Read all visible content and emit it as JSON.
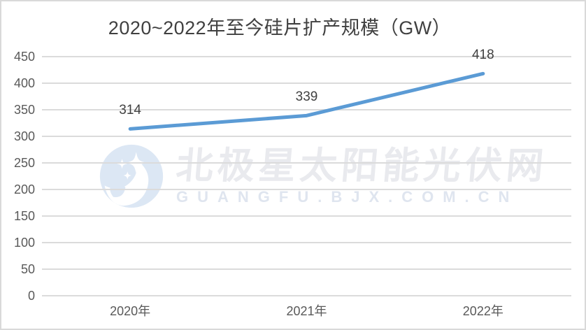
{
  "chart_data": {
    "type": "line",
    "title": "2020~2022年至今硅片扩产规模（GW）",
    "categories": [
      "2020年",
      "2021年",
      "2022年"
    ],
    "values": [
      314,
      339,
      418
    ],
    "data_labels": [
      "314",
      "339",
      "418"
    ],
    "yticks": [
      "0",
      "50",
      "100",
      "150",
      "200",
      "250",
      "300",
      "350",
      "400",
      "450"
    ],
    "ylim": [
      0,
      450
    ],
    "ytick_step": 50,
    "grid": true,
    "legend": "none",
    "xlabel": "",
    "ylabel": "",
    "colors": {
      "line": "#5B9BD5",
      "gridline": "#DBDBDB",
      "tick_label": "#595959",
      "data_label": "#404040",
      "title": "#404040",
      "border": "#D9D9D9",
      "background": "#FFFFFF"
    }
  },
  "watermark": {
    "icon": "polaris-star-logo",
    "line1": "北极星太阳能光伏网",
    "line2": "GUANGFU.BJX.COM.CN",
    "text_color": "#E9EAEE",
    "url_color": "#DFE5EF",
    "logo_color": "#DCE7F4"
  }
}
